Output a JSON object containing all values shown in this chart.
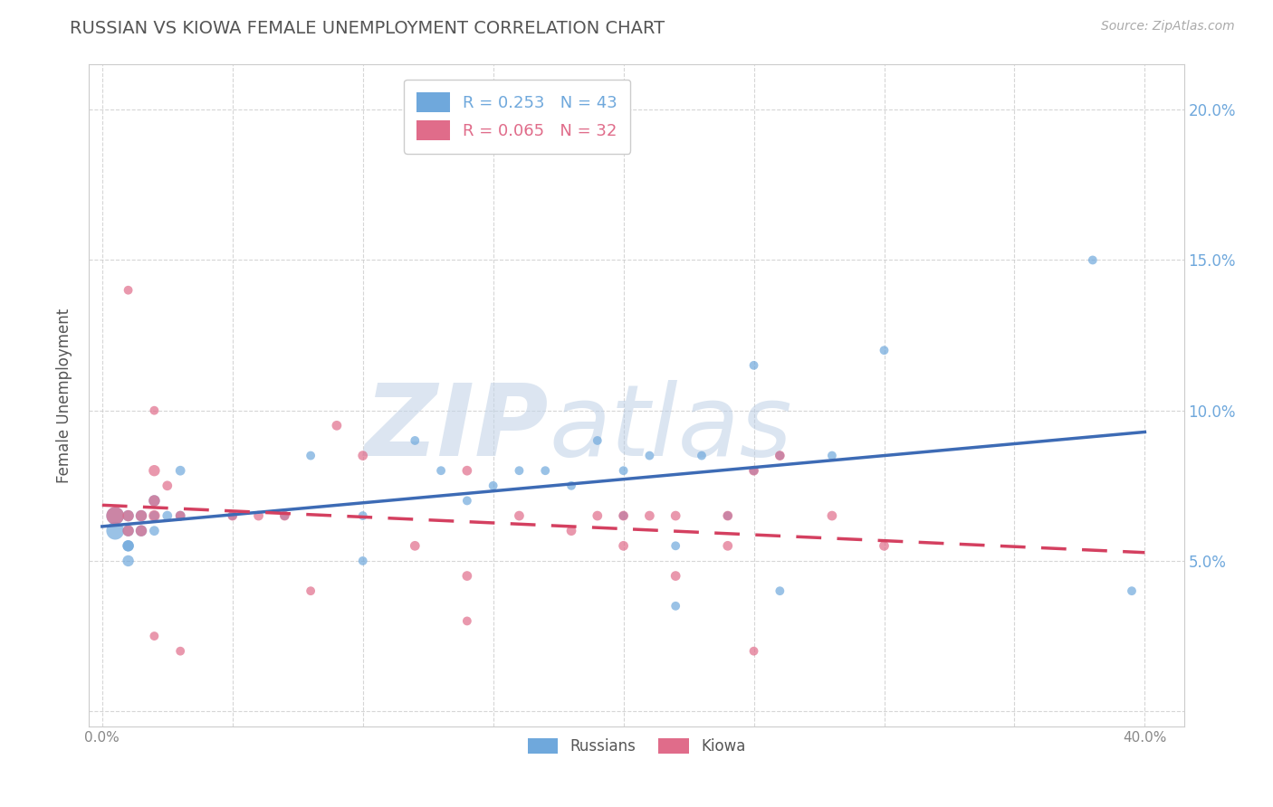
{
  "title": "RUSSIAN VS KIOWA FEMALE UNEMPLOYMENT CORRELATION CHART",
  "source": "Source: ZipAtlas.com",
  "ylabel": "Female Unemployment",
  "xlim": [
    -0.005,
    0.415
  ],
  "ylim": [
    -0.005,
    0.215
  ],
  "ytick_vals": [
    0.0,
    0.05,
    0.1,
    0.15,
    0.2
  ],
  "xtick_vals": [
    0.0,
    0.05,
    0.1,
    0.15,
    0.2,
    0.25,
    0.3,
    0.35,
    0.4
  ],
  "russian_R": 0.253,
  "russian_N": 43,
  "kiowa_R": 0.065,
  "kiowa_N": 32,
  "russian_color": "#6fa8dc",
  "kiowa_color": "#e06c8a",
  "russian_line_color": "#3d6bb5",
  "kiowa_line_color": "#d44060",
  "watermark_zip_color": "#c5d5e8",
  "watermark_atlas_color": "#b8cce4",
  "background_color": "#ffffff",
  "grid_color": "#cccccc",
  "title_color": "#555555",
  "russian_x": [
    0.005,
    0.005,
    0.01,
    0.01,
    0.01,
    0.01,
    0.01,
    0.015,
    0.015,
    0.02,
    0.02,
    0.02,
    0.025,
    0.03,
    0.03,
    0.05,
    0.07,
    0.08,
    0.1,
    0.1,
    0.12,
    0.13,
    0.14,
    0.15,
    0.16,
    0.17,
    0.18,
    0.19,
    0.2,
    0.2,
    0.21,
    0.22,
    0.22,
    0.23,
    0.24,
    0.25,
    0.26,
    0.26,
    0.28,
    0.3,
    0.38,
    0.395,
    0.25
  ],
  "russian_y": [
    0.065,
    0.06,
    0.065,
    0.06,
    0.055,
    0.05,
    0.055,
    0.065,
    0.06,
    0.07,
    0.065,
    0.06,
    0.065,
    0.08,
    0.065,
    0.065,
    0.065,
    0.085,
    0.065,
    0.05,
    0.09,
    0.08,
    0.07,
    0.075,
    0.08,
    0.08,
    0.075,
    0.09,
    0.065,
    0.08,
    0.085,
    0.055,
    0.035,
    0.085,
    0.065,
    0.08,
    0.085,
    0.04,
    0.085,
    0.12,
    0.15,
    0.04,
    0.115
  ],
  "russian_sizes": [
    200,
    200,
    80,
    80,
    80,
    80,
    80,
    80,
    80,
    80,
    60,
    60,
    60,
    60,
    60,
    50,
    50,
    50,
    50,
    50,
    50,
    50,
    50,
    50,
    50,
    50,
    50,
    50,
    50,
    50,
    50,
    50,
    50,
    50,
    50,
    50,
    50,
    50,
    50,
    50,
    50,
    50,
    50
  ],
  "kiowa_x": [
    0.005,
    0.01,
    0.01,
    0.015,
    0.015,
    0.02,
    0.02,
    0.02,
    0.025,
    0.03,
    0.05,
    0.06,
    0.07,
    0.09,
    0.1,
    0.12,
    0.14,
    0.16,
    0.18,
    0.19,
    0.2,
    0.21,
    0.22,
    0.24,
    0.25,
    0.26,
    0.28,
    0.14,
    0.2,
    0.22,
    0.24,
    0.3
  ],
  "kiowa_y": [
    0.065,
    0.065,
    0.06,
    0.065,
    0.06,
    0.07,
    0.08,
    0.065,
    0.075,
    0.065,
    0.065,
    0.065,
    0.065,
    0.095,
    0.085,
    0.055,
    0.08,
    0.065,
    0.06,
    0.065,
    0.065,
    0.065,
    0.065,
    0.065,
    0.08,
    0.085,
    0.065,
    0.045,
    0.055,
    0.045,
    0.055,
    0.055
  ],
  "kiowa_sizes": [
    200,
    80,
    80,
    80,
    80,
    80,
    80,
    80,
    60,
    60,
    60,
    60,
    60,
    60,
    60,
    60,
    60,
    60,
    60,
    60,
    60,
    60,
    60,
    60,
    60,
    60,
    60,
    60,
    60,
    60,
    60,
    60
  ],
  "kiowa_outlier_x": [
    0.01,
    0.02,
    0.02,
    0.03,
    0.08,
    0.14,
    0.25
  ],
  "kiowa_outlier_y": [
    0.14,
    0.1,
    0.025,
    0.02,
    0.04,
    0.03,
    0.02
  ]
}
